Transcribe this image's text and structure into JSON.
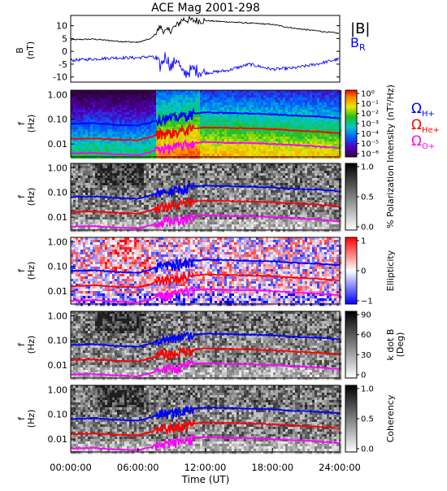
{
  "title": "ACE Mag 2001-298",
  "x_axis": {
    "label": "Time (UT)",
    "ticks": [
      "00:00:00",
      "06:00:00",
      "12:00:00",
      "18:00:00",
      "24:00:00"
    ],
    "range_hours": [
      0,
      24
    ]
  },
  "freq_ticks": [
    "1.00",
    "0.10",
    "0.01"
  ],
  "ylabel_f": "f",
  "ylabel_hz": "(Hz)",
  "legend": {
    "B_total": "|B|",
    "B_R": "B",
    "B_R_sub": "R",
    "cyc_H": "Ω",
    "cyc_H_sub": "H+",
    "cyc_He": "Ω",
    "cyc_He_sub": "He+",
    "cyc_O": "Ω",
    "cyc_O_sub": "O+"
  },
  "colors": {
    "B_total": "#000000",
    "B_R": "#0000ff",
    "cyc_H": "#0000ff",
    "cyc_He": "#ff0000",
    "cyc_O": "#ff00ff"
  },
  "chart_data": [
    {
      "type": "line",
      "panel": "magnetic-field",
      "ylabel_top": "B",
      "ylabel_unit": "(nT)",
      "ylim": [
        -12,
        14
      ],
      "yticks": [
        "10",
        "5",
        "0",
        "-5",
        "-10"
      ],
      "x_hours": [
        0,
        2,
        4,
        6,
        7.2,
        7.6,
        8,
        8.5,
        9,
        9.5,
        10,
        11,
        12,
        14,
        16,
        18,
        20,
        22,
        24
      ],
      "series": [
        {
          "name": "|B|",
          "values": [
            4.5,
            4.8,
            4.0,
            3.5,
            5.0,
            7.0,
            9.5,
            7.5,
            8.5,
            10.0,
            12.5,
            12.0,
            12.0,
            11.5,
            11.0,
            10.5,
            9.0,
            8.0,
            7.0
          ]
        },
        {
          "name": "B_R",
          "values": [
            -3.5,
            -3.0,
            -2.5,
            -2.5,
            -2.0,
            -3.0,
            -6.0,
            -1.5,
            -6.5,
            -2.5,
            -9.0,
            -7.0,
            -8.5,
            -7.5,
            -5.0,
            -7.0,
            -6.5,
            -5.0,
            -3.0
          ]
        }
      ]
    },
    {
      "type": "heatmap",
      "panel": "intensity",
      "colorbar_label": "Intensity (nT²/Hz)",
      "colorbar_ticks": [
        "10⁰",
        "10⁻¹",
        "10⁻²",
        "10⁻³",
        "10⁻⁴",
        "10⁻⁵",
        "10⁻⁶"
      ],
      "colormap": "rainbow"
    },
    {
      "type": "heatmap",
      "panel": "polarization",
      "colorbar_label": "% Polarization",
      "colorbar_ticks": [
        "1.0",
        "0.5",
        "0.0"
      ],
      "colormap": "grayscale"
    },
    {
      "type": "heatmap",
      "panel": "ellipticity",
      "colorbar_label": "Ellipticity",
      "colorbar_ticks": [
        "1",
        "0",
        "−1"
      ],
      "colormap": "blue-white-red"
    },
    {
      "type": "heatmap",
      "panel": "k-dot-b",
      "colorbar_label": "k dot B",
      "colorbar_unit": "(Deg)",
      "colorbar_ticks": [
        "90",
        "60",
        "30",
        "0"
      ],
      "colormap": "grayscale"
    },
    {
      "type": "heatmap",
      "panel": "coherency",
      "colorbar_label": "Coherency",
      "colorbar_ticks": [
        "1.0",
        "0.5",
        "0.0"
      ],
      "colormap": "grayscale"
    },
    {
      "type": "line",
      "panel": "cyclotron-frequencies",
      "note": "overlaid on all spectral panels",
      "y_scale": "log",
      "ylim": [
        0.003,
        1.5
      ],
      "x_hours": [
        0,
        2,
        4,
        6,
        7.2,
        8,
        9,
        10,
        11,
        12,
        14,
        16,
        18,
        20,
        22,
        24
      ],
      "series": [
        {
          "name": "Ω_H+",
          "values": [
            0.065,
            0.07,
            0.06,
            0.055,
            0.075,
            0.11,
            0.11,
            0.14,
            0.17,
            0.19,
            0.18,
            0.17,
            0.16,
            0.14,
            0.13,
            0.11
          ]
        },
        {
          "name": "Ω_He+",
          "values": [
            0.016,
            0.017,
            0.015,
            0.014,
            0.019,
            0.028,
            0.028,
            0.035,
            0.043,
            0.047,
            0.045,
            0.043,
            0.04,
            0.035,
            0.032,
            0.027
          ]
        },
        {
          "name": "Ω_O+",
          "values": [
            0.0041,
            0.0044,
            0.0038,
            0.0035,
            0.0047,
            0.0069,
            0.0069,
            0.0088,
            0.011,
            0.012,
            0.011,
            0.011,
            0.01,
            0.009,
            0.008,
            0.0068
          ]
        }
      ]
    }
  ]
}
